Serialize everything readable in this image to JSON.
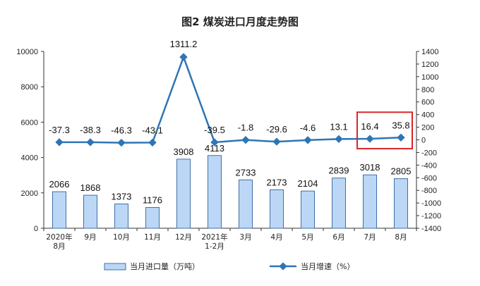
{
  "chart_data": {
    "type": "bar+line",
    "title": "图2 煤炭进口月度走势图",
    "categories": [
      [
        "2020年",
        "8月"
      ],
      [
        "9月"
      ],
      [
        "10月"
      ],
      [
        "11月"
      ],
      [
        "12月"
      ],
      [
        "2021年",
        "1-2月"
      ],
      [
        "3月"
      ],
      [
        "4月"
      ],
      [
        "5月"
      ],
      [
        "6月"
      ],
      [
        "7月"
      ],
      [
        "8月"
      ]
    ],
    "series": [
      {
        "name": "当月进口量（万吨）",
        "type": "bar",
        "axis": "left",
        "values": [
          2066,
          1868,
          1373,
          1176,
          3908,
          4113,
          2733,
          2173,
          2104,
          2839,
          3018,
          2805
        ],
        "labels": [
          "2066",
          "1868",
          "1373",
          "1176",
          "3908",
          "4113",
          "2733",
          "2173",
          "2104",
          "2839",
          "3018",
          "2805"
        ]
      },
      {
        "name": "当月增速（%）",
        "type": "line",
        "axis": "right",
        "values": [
          -37.3,
          -38.3,
          -46.3,
          -43.1,
          1311.2,
          -39.5,
          -1.8,
          -29.6,
          -4.6,
          13.1,
          16.4,
          35.8
        ],
        "labels": [
          "-37.3",
          "-38.3",
          "-46.3",
          "-43.1",
          "1311.2",
          "-39.5",
          "-1.8",
          "-29.6",
          "-4.6",
          "13.1",
          "16.4",
          "35.8"
        ]
      }
    ],
    "y_left": {
      "lim": [
        0,
        10000
      ],
      "ticks": [
        "0",
        "2000",
        "4000",
        "6000",
        "8000",
        "10000"
      ]
    },
    "y_right": {
      "lim": [
        -1400,
        1400
      ],
      "ticks": [
        "-1400",
        "-1200",
        "-1000",
        "-800",
        "-600",
        "-400",
        "-200",
        "0",
        "200",
        "400",
        "600",
        "800",
        "1000",
        "1200",
        "1400"
      ]
    },
    "legend_position": "bottom",
    "grid": false,
    "highlight": {
      "from_index": 10,
      "to_index": 11,
      "color": "#d9262b"
    },
    "colors": {
      "bar_fill": "#bcd7f5",
      "bar_stroke": "#3f6fa8",
      "line": "#2e75b6"
    }
  }
}
